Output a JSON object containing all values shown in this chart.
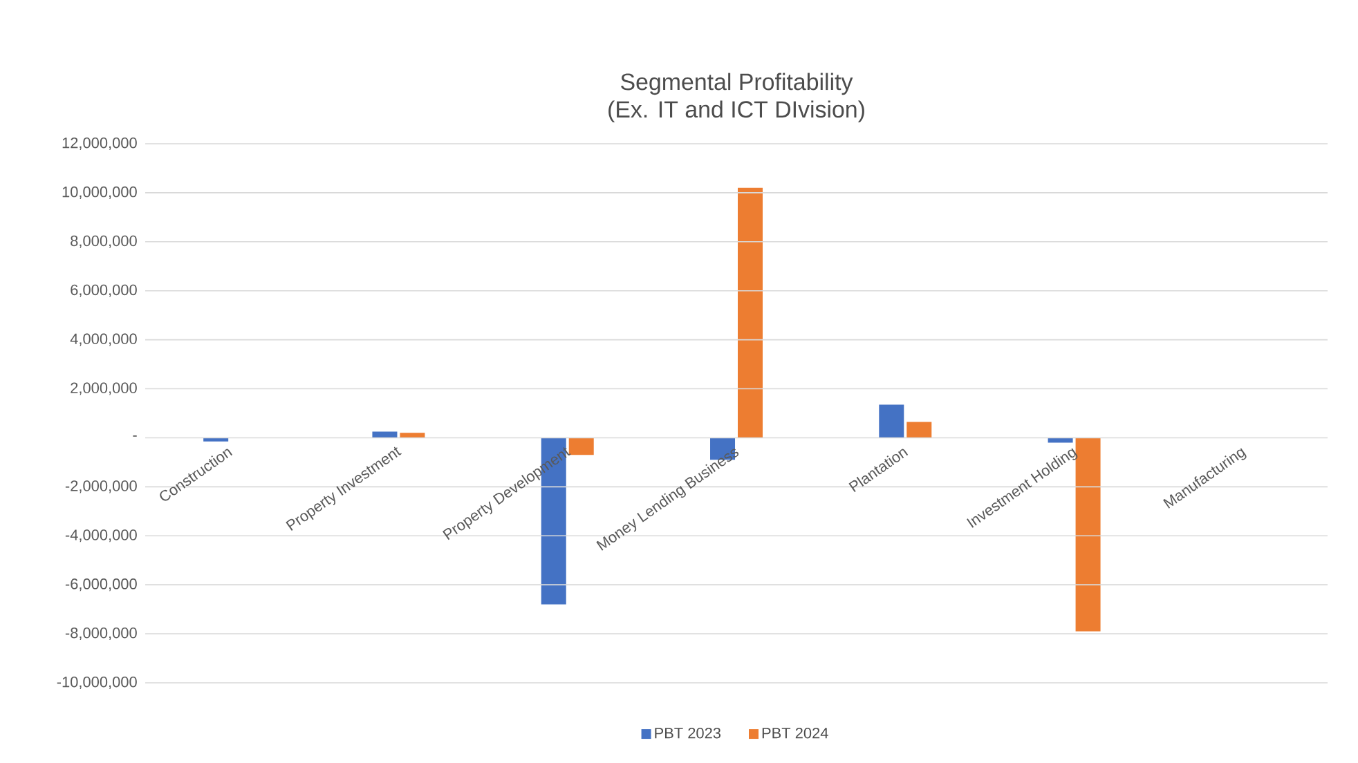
{
  "chart_data": {
    "type": "bar",
    "title": "Segmental Profitability\n(Ex. IT and ICT DIvision)",
    "categories": [
      "Construction",
      "Property Investment",
      "Property Development",
      "Money Lending Business",
      "Plantation",
      "Investment Holding",
      "Manufacturing"
    ],
    "series": [
      {
        "name": "PBT 2023",
        "color": "#4472c4",
        "values": [
          -150000,
          250000,
          -6800000,
          -900000,
          1350000,
          -200000,
          null
        ]
      },
      {
        "name": "PBT 2024",
        "color": "#ed7d31",
        "values": [
          null,
          200000,
          -700000,
          10200000,
          650000,
          -7900000,
          null
        ]
      }
    ],
    "ylim": [
      -10000000,
      12000000
    ],
    "yticks": [
      {
        "value": -10000000,
        "label": "-10,000,000"
      },
      {
        "value": -8000000,
        "label": "-8,000,000"
      },
      {
        "value": -6000000,
        "label": "-6,000,000"
      },
      {
        "value": -4000000,
        "label": "-4,000,000"
      },
      {
        "value": -2000000,
        "label": "-2,000,000"
      },
      {
        "value": 0,
        "label": "-"
      },
      {
        "value": 2000000,
        "label": "2,000,000"
      },
      {
        "value": 4000000,
        "label": "4,000,000"
      },
      {
        "value": 6000000,
        "label": "6,000,000"
      },
      {
        "value": 8000000,
        "label": "8,000,000"
      },
      {
        "value": 10000000,
        "label": "10,000,000"
      },
      {
        "value": 12000000,
        "label": "12,000,000"
      }
    ],
    "grid": "y",
    "legend": "bottom"
  }
}
